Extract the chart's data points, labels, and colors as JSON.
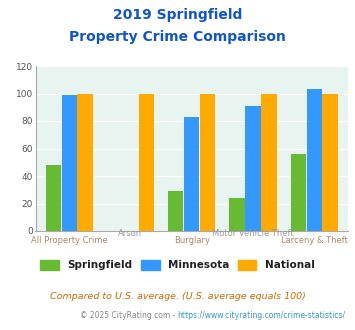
{
  "title_line1": "2019 Springfield",
  "title_line2": "Property Crime Comparison",
  "categories": [
    "All Property Crime",
    "Arson",
    "Burglary",
    "Motor Vehicle Theft",
    "Larceny & Theft"
  ],
  "springfield": [
    48,
    0,
    29,
    24,
    56
  ],
  "minnesota": [
    99,
    0,
    83,
    91,
    103
  ],
  "national": [
    100,
    100,
    100,
    100,
    100
  ],
  "colors": {
    "springfield": "#66bb33",
    "minnesota": "#3399ff",
    "national": "#ffaa00"
  },
  "ylim": [
    0,
    120
  ],
  "yticks": [
    0,
    20,
    40,
    60,
    80,
    100,
    120
  ],
  "background_color": "#e8f4f0",
  "title_color": "#1155cc",
  "xlabel_color_bottom": "#aa8866",
  "xlabel_color_top": "#999999",
  "footer_text": "Compared to U.S. average. (U.S. average equals 100)",
  "credit_prefix": "© 2025 CityRating.com - ",
  "credit_url": "https://www.cityrating.com/crime-statistics/",
  "footer_color": "#cc6600",
  "credit_color": "#888888",
  "credit_url_color": "#3399cc",
  "legend_text_color": "#222222",
  "bar_width": 0.25
}
